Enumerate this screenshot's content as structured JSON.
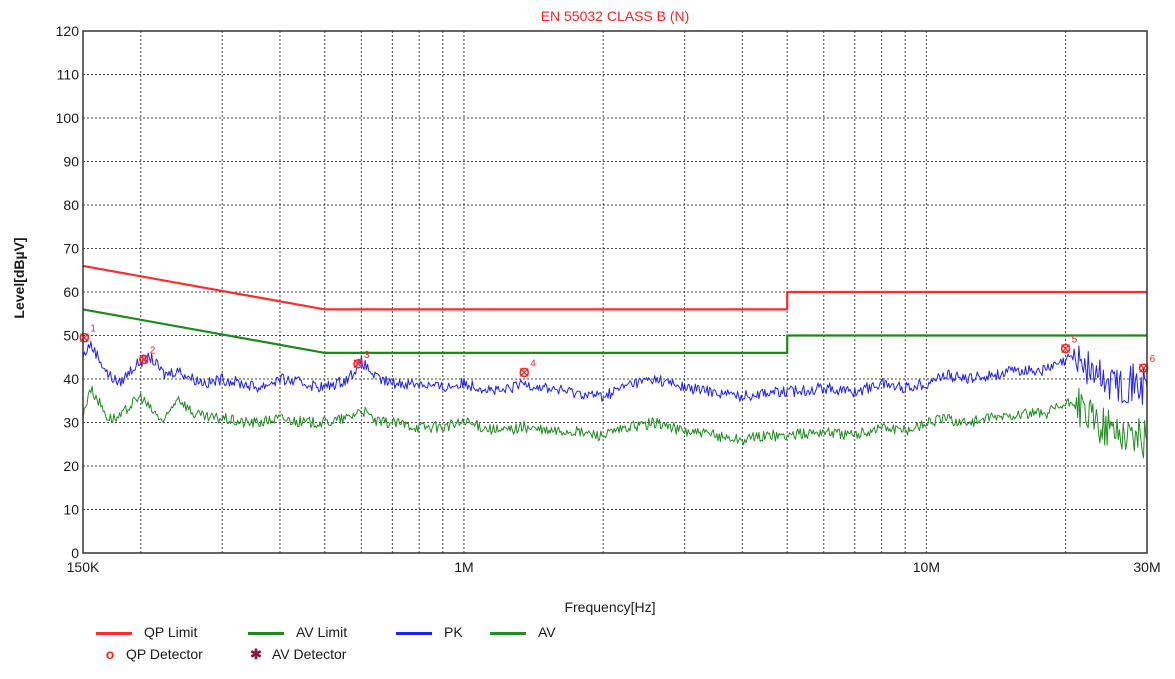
{
  "chart_data": {
    "type": "line",
    "title": "EN 55032 CLASS  B (N)",
    "xlabel": "Frequency[Hz]",
    "ylabel": "Level[dBµV]",
    "x_scale": "log",
    "xlim_hz": [
      150000,
      30000000
    ],
    "ylim": [
      0,
      120
    ],
    "y_ticks": [
      0,
      10,
      20,
      30,
      40,
      50,
      60,
      70,
      80,
      90,
      100,
      110,
      120
    ],
    "x_tick_labels": [
      {
        "value": 150000,
        "label": "150K"
      },
      {
        "value": 1000000,
        "label": "1M"
      },
      {
        "value": 10000000,
        "label": "10M"
      },
      {
        "value": 30000000,
        "label": "30M"
      }
    ],
    "grid": true,
    "colors": {
      "qp_limit": "#ff2a2a",
      "av_limit": "#1a8a1a",
      "pk": "#2020ff",
      "av": "#1f8f1f",
      "marker": "#ff2020",
      "title": "#ff2020"
    },
    "series": [
      {
        "name": "QP Limit",
        "color": "#ff2a2a",
        "x": [
          150000,
          500000,
          500000,
          5000000,
          5000000,
          30000000
        ],
        "y": [
          66,
          56,
          56,
          56,
          60,
          60
        ]
      },
      {
        "name": "AV Limit",
        "color": "#1a8a1a",
        "x": [
          150000,
          500000,
          500000,
          5000000,
          5000000,
          30000000
        ],
        "y": [
          56,
          46,
          46,
          46,
          50,
          50
        ]
      },
      {
        "name": "PK",
        "color": "#2020ff",
        "x": [
          150000,
          155000,
          160000,
          170000,
          180000,
          190000,
          200000,
          210000,
          225000,
          240000,
          260000,
          280000,
          300000,
          330000,
          360000,
          400000,
          450000,
          500000,
          560000,
          600000,
          650000,
          700000,
          800000,
          900000,
          1000000,
          1200000,
          1350000,
          1500000,
          1700000,
          2000000,
          2300000,
          2600000,
          3000000,
          3500000,
          4000000,
          4500000,
          5000000,
          6000000,
          7000000,
          8000000,
          9000000,
          10000000,
          11000000,
          12000000,
          14000000,
          16000000,
          18000000,
          20000000,
          21000000,
          22000000,
          24000000,
          26000000,
          28000000,
          30000000
        ],
        "y": [
          45,
          48,
          46,
          41,
          39,
          42,
          44,
          45,
          41,
          42,
          40,
          39,
          40,
          39,
          38,
          40,
          39,
          38,
          40,
          44,
          40,
          39,
          39,
          38,
          39,
          37,
          39,
          38,
          37,
          36,
          39,
          40,
          38,
          37,
          36,
          37,
          37,
          38,
          37,
          39,
          38,
          39,
          41,
          40,
          41,
          42,
          42,
          44,
          46,
          43,
          40,
          39,
          39,
          38
        ]
      },
      {
        "name": "AV",
        "color": "#1f8f1f",
        "x": [
          150000,
          155000,
          160000,
          170000,
          180000,
          190000,
          200000,
          210000,
          225000,
          240000,
          260000,
          280000,
          300000,
          330000,
          360000,
          400000,
          450000,
          500000,
          560000,
          600000,
          650000,
          700000,
          800000,
          900000,
          1000000,
          1200000,
          1350000,
          1500000,
          1700000,
          2000000,
          2300000,
          2600000,
          3000000,
          3500000,
          4000000,
          4500000,
          5000000,
          6000000,
          7000000,
          8000000,
          9000000,
          10000000,
          11000000,
          12000000,
          14000000,
          16000000,
          18000000,
          20000000,
          21000000,
          22000000,
          24000000,
          26000000,
          28000000,
          30000000
        ],
        "y": [
          31,
          38,
          36,
          31,
          31,
          34,
          36,
          33,
          30,
          36,
          32,
          31,
          31,
          30,
          30,
          31,
          30,
          30,
          31,
          33,
          30,
          30,
          29,
          29,
          30,
          28,
          29,
          28,
          28,
          27,
          29,
          30,
          28,
          27,
          26,
          27,
          27,
          28,
          27,
          29,
          28,
          30,
          31,
          30,
          31,
          32,
          32,
          34,
          35,
          32,
          29,
          28,
          27,
          26
        ]
      }
    ],
    "markers": [
      {
        "label": "1",
        "x": 151000,
        "y": 49.5
      },
      {
        "label": "2",
        "x": 203000,
        "y": 44.5
      },
      {
        "label": "3",
        "x": 590000,
        "y": 43.5
      },
      {
        "label": "4",
        "x": 1350000,
        "y": 41.5
      },
      {
        "label": "5",
        "x": 20000000,
        "y": 47
      },
      {
        "label": "6",
        "x": 29500000,
        "y": 42.5
      }
    ],
    "legend": {
      "placement": "bottom-left",
      "items": [
        {
          "label": "QP Limit",
          "kind": "line",
          "color": "#ff2a2a"
        },
        {
          "label": "AV Limit",
          "kind": "line",
          "color": "#1a8a1a"
        },
        {
          "label": "PK",
          "kind": "line",
          "color": "#2020ff"
        },
        {
          "label": "AV",
          "kind": "line",
          "color": "#1f8f1f"
        },
        {
          "label": "QP Detector",
          "kind": "symbol",
          "symbol": "o",
          "color": "#ff2020"
        },
        {
          "label": "AV Detector",
          "kind": "symbol",
          "symbol": "✱",
          "color": "#8b1a4a"
        }
      ]
    }
  }
}
